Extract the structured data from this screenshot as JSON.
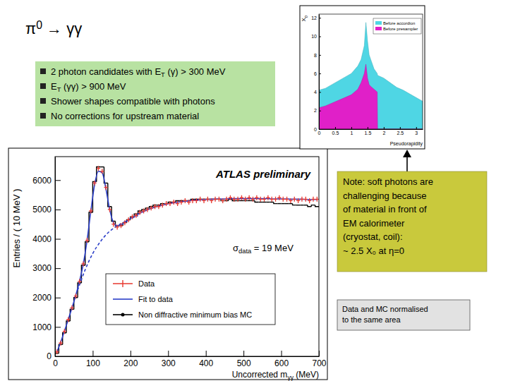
{
  "slide": {
    "title": [
      {
        "text": "π"
      },
      {
        "sup": "0"
      },
      {
        "text": " → γγ"
      }
    ],
    "bullets": [
      [
        {
          "text": "2 photon candidates with E"
        },
        {
          "sub": "T"
        },
        {
          "text": " (γ)  >  300 MeV"
        }
      ],
      [
        {
          "text": "E"
        },
        {
          "sub": "T"
        },
        {
          "text": " (γγ) > 900 MeV"
        }
      ],
      "Shower shapes compatible with photons",
      "No corrections for upstream material"
    ],
    "note": [
      "Note: soft photons are",
      "challenging because",
      "of material in front of",
      "EM calorimeter",
      "(cryostat, coil):",
      "~ 2.5 X₀ at η=0"
    ],
    "norm_note": [
      "Data and MC normalised",
      "to the same area"
    ]
  },
  "chart_data": [
    {
      "type": "line",
      "title": "ATLAS preliminary",
      "xlabel": [
        {
          "text": "Uncorrected m"
        },
        {
          "sub": "γγ"
        },
        {
          "text": " (MeV)"
        }
      ],
      "ylabel": "Entries / ( 10 MeV )",
      "annotation": [
        {
          "text": "σ"
        },
        {
          "sub": "data"
        },
        {
          "text": " = 19 MeV"
        }
      ],
      "xlim": [
        0,
        700
      ],
      "ylim": [
        0,
        6800
      ],
      "xticks": [
        0,
        100,
        200,
        300,
        400,
        500,
        600,
        700
      ],
      "yticks": [
        0,
        1000,
        2000,
        3000,
        4000,
        5000,
        6000
      ],
      "legend": "lower left",
      "series": [
        {
          "name": "Data",
          "type": "scatter",
          "marker": "cross",
          "color": "#e8382f",
          "x": [
            5,
            15,
            25,
            35,
            45,
            55,
            65,
            75,
            85,
            95,
            105,
            115,
            125,
            135,
            145,
            155,
            165,
            175,
            185,
            195,
            205,
            215,
            225,
            235,
            245,
            255,
            265,
            275,
            285,
            295,
            305,
            315,
            325,
            335,
            345,
            355,
            365,
            375,
            385,
            395,
            405,
            415,
            425,
            435,
            445,
            455,
            465,
            475,
            485,
            495,
            505,
            515,
            525,
            535,
            545,
            555,
            565,
            575,
            585,
            595,
            605,
            615,
            625,
            635,
            645,
            655,
            665,
            675,
            685,
            695
          ],
          "values": [
            150,
            450,
            850,
            1250,
            1650,
            2050,
            2550,
            3150,
            3950,
            4950,
            5900,
            6400,
            6300,
            5750,
            5000,
            4500,
            4400,
            4450,
            4550,
            4650,
            4750,
            4800,
            4900,
            4950,
            5000,
            5050,
            5100,
            5100,
            5150,
            5200,
            5200,
            5250,
            5200,
            5250,
            5300,
            5250,
            5300,
            5300,
            5350,
            5300,
            5350,
            5300,
            5350,
            5350,
            5300,
            5350,
            5400,
            5350,
            5350,
            5400,
            5350,
            5400,
            5350,
            5400,
            5350,
            5350,
            5400,
            5350,
            5350,
            5400,
            5350,
            5350,
            5300,
            5350,
            5300,
            5350,
            5350,
            5300,
            5350,
            5350
          ]
        },
        {
          "name": "Fit to data",
          "type": "line",
          "line_style": "solid",
          "color": "#2b3ec8",
          "x": [
            5,
            15,
            25,
            35,
            45,
            55,
            65,
            75,
            85,
            95,
            105,
            115,
            125,
            135,
            145,
            155,
            165,
            175,
            185,
            195,
            205,
            215,
            225,
            235,
            245,
            255,
            265,
            275,
            285,
            295,
            305,
            315,
            325,
            335,
            345,
            355,
            365,
            375,
            385,
            395,
            405,
            415,
            425,
            435,
            445,
            455,
            465,
            475,
            485,
            495,
            505,
            515,
            525,
            535,
            545,
            555,
            565,
            575,
            585,
            595,
            605,
            615,
            625,
            635,
            645,
            655,
            665,
            675,
            685,
            695
          ],
          "values": [
            150,
            480,
            860,
            1250,
            1650,
            2080,
            2560,
            3150,
            3950,
            4950,
            5850,
            6300,
            6250,
            5700,
            5000,
            4550,
            4450,
            4480,
            4560,
            4650,
            4730,
            4800,
            4870,
            4930,
            4990,
            5040,
            5080,
            5120,
            5150,
            5180,
            5210,
            5230,
            5250,
            5270,
            5280,
            5300,
            5310,
            5320,
            5330,
            5340,
            5340,
            5350,
            5350,
            5360,
            5360,
            5360,
            5370,
            5370,
            5370,
            5370,
            5370,
            5370,
            5370,
            5370,
            5370,
            5370,
            5370,
            5360,
            5360,
            5360,
            5360,
            5360,
            5350,
            5350,
            5350,
            5350,
            5340,
            5340,
            5340,
            5340
          ]
        },
        {
          "type": "line",
          "line_style": "dashed",
          "color": "#2b3ec8",
          "x": [
            60,
            80,
            100,
            120,
            140,
            160,
            180,
            200,
            220
          ],
          "values": [
            2250,
            2950,
            3500,
            3900,
            4200,
            4400,
            4550,
            4680,
            4790
          ]
        },
        {
          "name": "Non diffractive minimum bias MC",
          "type": "histogram",
          "marker": "circle",
          "color": "#000000",
          "bins": [
            0,
            10,
            20,
            30,
            40,
            50,
            60,
            70,
            80,
            90,
            100,
            110,
            120,
            130,
            140,
            150,
            160,
            170,
            180,
            190,
            200,
            210,
            220,
            230,
            240,
            250,
            260,
            270,
            280,
            290,
            300,
            310,
            320,
            330,
            340,
            350,
            360,
            370,
            380,
            390,
            400,
            410,
            420,
            430,
            440,
            450,
            460,
            470,
            480,
            490,
            500,
            510,
            520,
            530,
            540,
            550,
            560,
            570,
            580,
            590,
            600,
            610,
            620,
            630,
            640,
            650,
            660,
            670,
            680,
            690,
            700
          ],
          "values": [
            100,
            400,
            800,
            1200,
            1600,
            2000,
            2500,
            3100,
            3900,
            4900,
            5950,
            6450,
            6450,
            5900,
            5100,
            4600,
            4450,
            4450,
            4550,
            4650,
            4750,
            4850,
            4950,
            5000,
            5050,
            5100,
            5150,
            5150,
            5200,
            5200,
            5250,
            5250,
            5300,
            5300,
            5300,
            5300,
            5350,
            5350,
            5350,
            5350,
            5350,
            5350,
            5350,
            5350,
            5300,
            5300,
            5350,
            5300,
            5300,
            5300,
            5300,
            5300,
            5300,
            5250,
            5250,
            5250,
            5250,
            5250,
            5200,
            5200,
            5200,
            5200,
            5200,
            5150,
            5150,
            5150,
            5150,
            5100,
            5150,
            5100
          ]
        }
      ]
    },
    {
      "type": "area",
      "xlabel": "Pseudorapidity",
      "ylabel": [
        {
          "text": "X"
        },
        {
          "sub": "0"
        }
      ],
      "xlim": [
        0,
        3.2
      ],
      "ylim": [
        0,
        12.4
      ],
      "xticks": [
        0,
        0.5,
        1,
        1.5,
        2,
        2.5,
        3
      ],
      "yticks": [
        0,
        2,
        4,
        6,
        8,
        10,
        12
      ],
      "legend": "upper right",
      "x": [
        0,
        0.2,
        0.4,
        0.6,
        0.8,
        1.0,
        1.2,
        1.3,
        1.4,
        1.45,
        1.5,
        1.55,
        1.6,
        1.7,
        1.8,
        1.81,
        2.0,
        2.2,
        2.4,
        2.6,
        2.8,
        3.0,
        3.2
      ],
      "series": [
        {
          "name": "Before accordion",
          "color": "#4fd6e4",
          "values": [
            4.2,
            4.4,
            4.8,
            5.2,
            5.6,
            6.0,
            6.8,
            7.5,
            9.0,
            11.5,
            9.5,
            8.0,
            7.5,
            6.5,
            6.0,
            5.8,
            5.5,
            5.0,
            4.5,
            4.2,
            3.8,
            3.4,
            3.0
          ]
        },
        {
          "name": "Before presampler",
          "color": "#e020c8",
          "values": [
            2.3,
            2.5,
            2.8,
            3.1,
            3.4,
            3.7,
            4.3,
            5.0,
            6.0,
            7.0,
            5.5,
            4.8,
            4.6,
            4.3,
            4.0,
            0,
            0,
            0,
            0,
            0,
            0,
            0,
            0
          ]
        }
      ]
    }
  ]
}
